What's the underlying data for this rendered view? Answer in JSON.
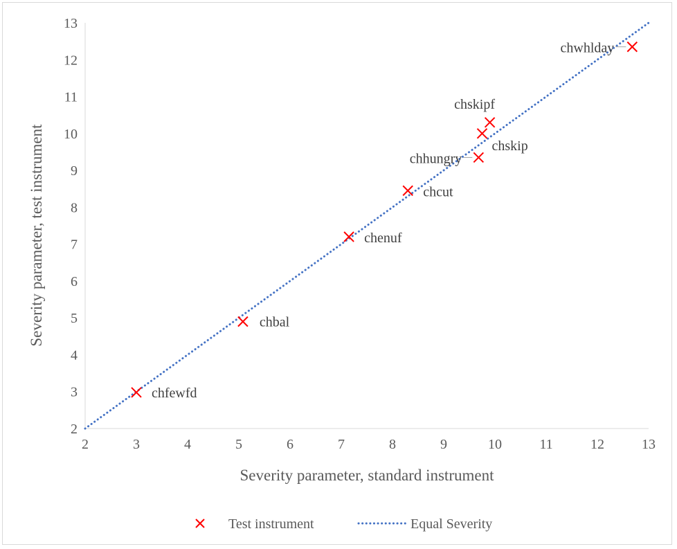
{
  "chart_data": {
    "type": "scatter",
    "title": "",
    "xlabel": "Severity parameter, standard instrument",
    "ylabel": "Severity parameter, test instrument",
    "xlim": [
      2,
      13
    ],
    "ylim": [
      2,
      13
    ],
    "x_ticks": [
      "2",
      "3",
      "4",
      "5",
      "6",
      "7",
      "8",
      "9",
      "10",
      "11",
      "12",
      "13"
    ],
    "y_ticks": [
      "2",
      "3",
      "4",
      "5",
      "6",
      "7",
      "8",
      "9",
      "10",
      "11",
      "12",
      "13"
    ],
    "grid": false,
    "legend_position": "bottom",
    "series": [
      {
        "name": "Test instrument",
        "marker": "x",
        "color": "#ff0000",
        "points": [
          {
            "label": "chfewfd",
            "x": 3.0,
            "y": 2.98
          },
          {
            "label": "chbal",
            "x": 5.08,
            "y": 4.9
          },
          {
            "label": "chenuf",
            "x": 7.15,
            "y": 7.2
          },
          {
            "label": "chcut",
            "x": 8.3,
            "y": 8.45
          },
          {
            "label": "chhungry",
            "x": 9.68,
            "y": 9.35
          },
          {
            "label": "chskip",
            "x": 9.75,
            "y": 10.0
          },
          {
            "label": "chskipf",
            "x": 9.9,
            "y": 10.3
          },
          {
            "label": "chwhlday",
            "x": 12.68,
            "y": 12.35
          }
        ]
      },
      {
        "name": "Equal Severity",
        "style": "dotted",
        "color": "#4472c4",
        "points": [
          {
            "x": 2,
            "y": 2
          },
          {
            "x": 13,
            "y": 13
          }
        ]
      }
    ]
  }
}
